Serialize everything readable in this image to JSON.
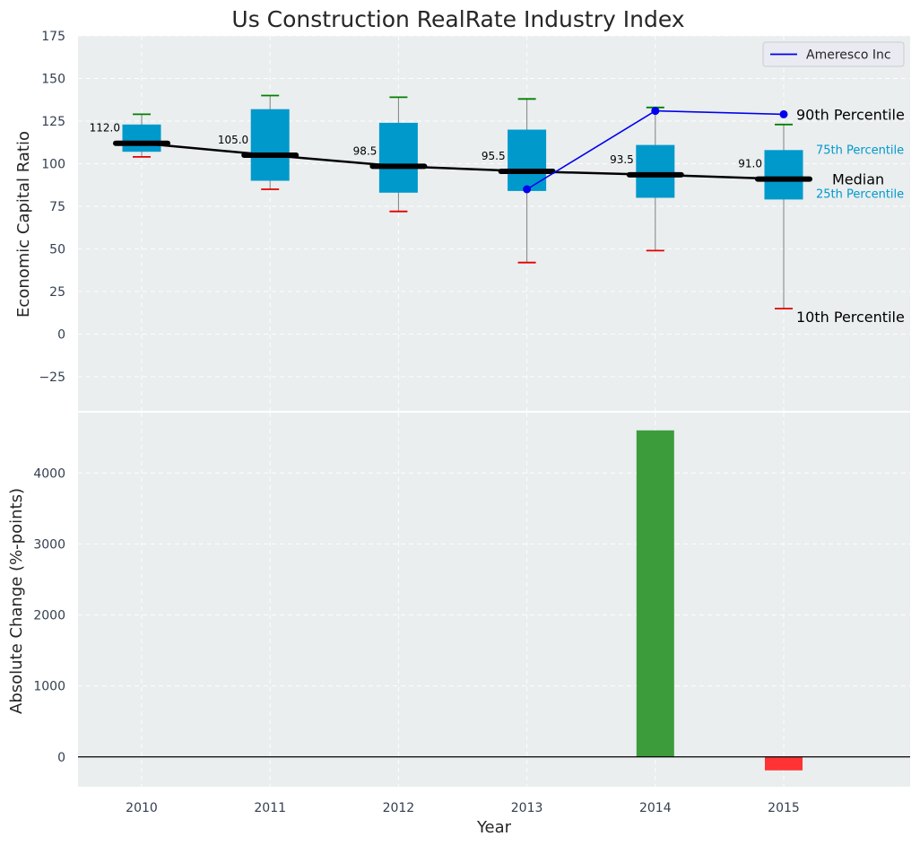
{
  "chart_data": {
    "title": "Us Construction RealRate Industry Index",
    "xlabel": "Year",
    "categories": [
      "2010",
      "2011",
      "2012",
      "2013",
      "2014",
      "2015"
    ],
    "top_panel": {
      "type": "box",
      "ylabel": "Economic Capital Ratio",
      "ylim": [
        -45,
        175
      ],
      "yticks": [
        -25,
        0,
        25,
        50,
        75,
        100,
        125,
        150,
        175
      ],
      "boxes": [
        {
          "year": "2010",
          "p10": 104,
          "p25": 107,
          "median": 112.0,
          "p75": 123,
          "p90": 129,
          "median_label": "112.0"
        },
        {
          "year": "2011",
          "p10": 85,
          "p25": 90,
          "median": 105.0,
          "p75": 132,
          "p90": 140,
          "median_label": "105.0"
        },
        {
          "year": "2012",
          "p10": 72,
          "p25": 83,
          "median": 98.5,
          "p75": 124,
          "p90": 139,
          "median_label": "98.5"
        },
        {
          "year": "2013",
          "p10": 42,
          "p25": 84,
          "median": 95.5,
          "p75": 120,
          "p90": 138,
          "median_label": "95.5"
        },
        {
          "year": "2014",
          "p10": 49,
          "p25": 80,
          "median": 93.5,
          "p75": 111,
          "p90": 133,
          "median_label": "93.5"
        },
        {
          "year": "2015",
          "p10": 15,
          "p25": 79,
          "median": 91.0,
          "p75": 108,
          "p90": 123,
          "median_label": "91.0"
        }
      ],
      "company_series": {
        "name": "Ameresco Inc",
        "x": [
          "2013",
          "2014",
          "2015"
        ],
        "values": [
          85,
          131,
          129
        ]
      },
      "legend": {
        "position": "top-right",
        "label": "Ameresco Inc"
      },
      "annotations": {
        "p90": "90th Percentile",
        "p75": "75th Percentile",
        "median": "Median",
        "p25": "25th Percentile",
        "p10": "10th Percentile"
      }
    },
    "bottom_panel": {
      "type": "bar",
      "ylabel": "Absolute Change (%-points)",
      "ylim": [
        -420,
        4850
      ],
      "yticks": [
        0,
        1000,
        2000,
        3000,
        4000
      ],
      "values": [
        null,
        null,
        null,
        null,
        4600,
        -190
      ]
    },
    "colors": {
      "background": "#eaeeef",
      "box": "#0099cc",
      "median": "#000000",
      "p90_cap": "#008000",
      "p10_cap": "#e00000",
      "whisker": "#808080",
      "company": "#0000ee",
      "bar_positive": "#3c9c3c",
      "bar_negative": "#ff3333"
    }
  }
}
